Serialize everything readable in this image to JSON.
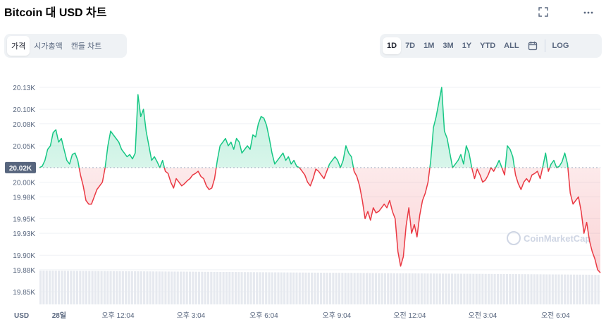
{
  "header": {
    "title": "Bitcoin 대 USD 차트",
    "fullscreen_icon": "expand-icon",
    "more_icon": "more-horizontal-icon"
  },
  "tabs": [
    {
      "label": "가격",
      "active": true
    },
    {
      "label": "시가총액",
      "active": false
    },
    {
      "label": "캔들 차트",
      "active": false
    }
  ],
  "ranges": [
    {
      "label": "1D",
      "active": true
    },
    {
      "label": "7D",
      "active": false
    },
    {
      "label": "1M",
      "active": false
    },
    {
      "label": "3M",
      "active": false
    },
    {
      "label": "1Y",
      "active": false
    },
    {
      "label": "YTD",
      "active": false
    },
    {
      "label": "ALL",
      "active": false
    }
  ],
  "calendar_icon": "calendar-icon",
  "log_label": "LOG",
  "watermark": "CoinMarketCap",
  "colors": {
    "up": "#16c784",
    "down": "#ea3943",
    "axis_text": "#58667e",
    "grid": "#eff2f5"
  },
  "chart_data": {
    "type": "line",
    "y_unit_label": "USD",
    "reference_label": "20.02K",
    "reference_value": 20020,
    "y_ticks": [
      "20.13K",
      "20.10K",
      "20.08K",
      "20.05K",
      "20.00K",
      "19.98K",
      "19.95K",
      "19.93K",
      "19.90K",
      "19.88K",
      "19.85K"
    ],
    "y_tick_values": [
      20130,
      20100,
      20080,
      20050,
      20000,
      19980,
      19950,
      19930,
      19900,
      19880,
      19850
    ],
    "ylim": [
      19850,
      20130
    ],
    "x_ticks": [
      "28일",
      "오후 12:04",
      "오후 3:04",
      "오후 6:04",
      "오후 9:04",
      "오전 12:04",
      "오전 3:04",
      "오전 6:04"
    ],
    "x_tick_positions": [
      0.035,
      0.14,
      0.27,
      0.4,
      0.53,
      0.66,
      0.79,
      0.92
    ],
    "price_series": [
      20020,
      20022,
      20030,
      20045,
      20050,
      20068,
      20072,
      20055,
      20060,
      20045,
      20030,
      20025,
      20038,
      20040,
      20030,
      20010,
      19995,
      19975,
      19970,
      19970,
      19980,
      19990,
      19995,
      20000,
      20020,
      20050,
      20070,
      20065,
      20060,
      20055,
      20045,
      20040,
      20035,
      20038,
      20032,
      20040,
      20120,
      20090,
      20100,
      20070,
      20050,
      20030,
      20035,
      20028,
      20020,
      20030,
      20015,
      20012,
      20000,
      19992,
      20005,
      20000,
      19995,
      19998,
      20002,
      20005,
      20010,
      20012,
      20015,
      20008,
      20005,
      19995,
      19990,
      19992,
      20005,
      20030,
      20050,
      20055,
      20060,
      20050,
      20055,
      20045,
      20060,
      20055,
      20040,
      20045,
      20050,
      20045,
      20065,
      20062,
      20080,
      20090,
      20088,
      20078,
      20060,
      20040,
      20025,
      20030,
      20035,
      20040,
      20030,
      20035,
      20025,
      20030,
      20022,
      20020,
      20015,
      20010,
      20000,
      19995,
      20005,
      20018,
      20015,
      20010,
      20005,
      20015,
      20025,
      20030,
      20035,
      20030,
      20020,
      20030,
      20050,
      20040,
      20035,
      20015,
      20008,
      19995,
      19975,
      19950,
      19960,
      19948,
      19965,
      19958,
      19960,
      19965,
      19970,
      19965,
      19975,
      19960,
      19950,
      19905,
      19885,
      19898,
      19940,
      19965,
      19930,
      19942,
      19925,
      19955,
      19975,
      19985,
      20000,
      20030,
      20075,
      20090,
      20110,
      20130,
      20070,
      20060,
      20040,
      20020,
      20025,
      20030,
      20038,
      20025,
      20050,
      20040,
      20020,
      20005,
      20018,
      20010,
      20000,
      20003,
      20010,
      20020,
      20015,
      20022,
      20030,
      20020,
      20010,
      20050,
      20045,
      20035,
      20010,
      19998,
      19990,
      20000,
      20005,
      20000,
      20010,
      20012,
      20015,
      20005,
      20022,
      20040,
      20015,
      20025,
      20030,
      20020,
      20022,
      20028,
      20040,
      20025,
      19985,
      19970,
      19975,
      19980,
      19960,
      19930,
      19945,
      19920,
      19905,
      19895,
      19880,
      19876
    ]
  }
}
